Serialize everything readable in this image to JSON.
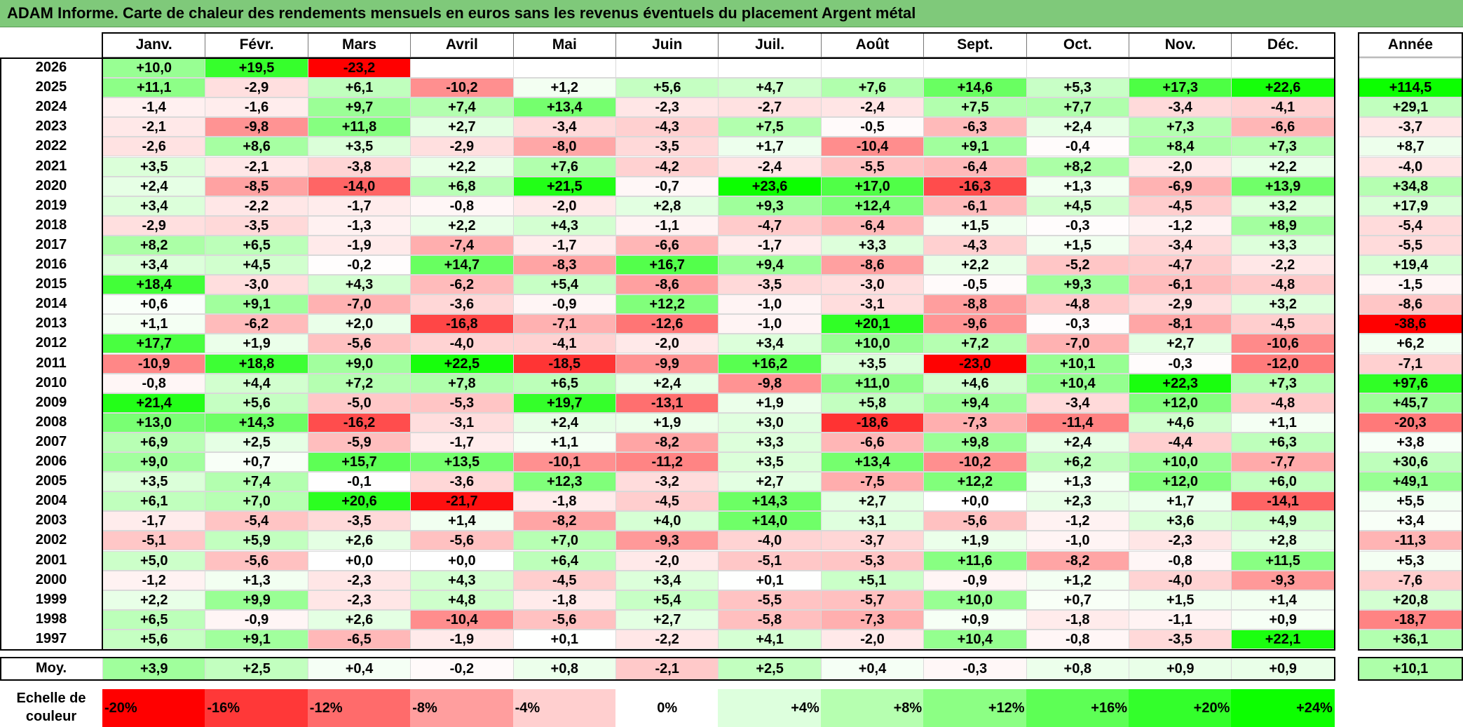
{
  "title": "ADAM Informe. Carte de chaleur des rendements mensuels en euros sans les revenus éventuels du placement Argent métal",
  "chart_data": {
    "type": "heatmap",
    "months": [
      "Janv.",
      "Févr.",
      "Mars",
      "Avril",
      "Mai",
      "Juin",
      "Juil.",
      "Août",
      "Sept.",
      "Oct.",
      "Nov.",
      "Déc."
    ],
    "year_header": "Année",
    "rows": [
      {
        "year": "2026",
        "values": [
          "+10,0",
          "+19,5",
          "-23,2",
          "",
          "",
          "",
          "",
          "",
          "",
          "",
          "",
          ""
        ],
        "annual": ""
      },
      {
        "year": "2025",
        "values": [
          "+11,1",
          "-2,9",
          "+6,1",
          "-10,2",
          "+1,2",
          "+5,6",
          "+4,7",
          "+7,6",
          "+14,6",
          "+5,3",
          "+17,3",
          "+22,6"
        ],
        "annual": "+114,5"
      },
      {
        "year": "2024",
        "values": [
          "-1,4",
          "-1,6",
          "+9,7",
          "+7,4",
          "+13,4",
          "-2,3",
          "-2,7",
          "-2,4",
          "+7,5",
          "+7,7",
          "-3,4",
          "-4,1"
        ],
        "annual": "+29,1"
      },
      {
        "year": "2023",
        "values": [
          "-2,1",
          "-9,8",
          "+11,8",
          "+2,7",
          "-3,4",
          "-4,3",
          "+7,5",
          "-0,5",
          "-6,3",
          "+2,4",
          "+7,3",
          "-6,6"
        ],
        "annual": "-3,7"
      },
      {
        "year": "2022",
        "values": [
          "-2,6",
          "+8,6",
          "+3,5",
          "-2,9",
          "-8,0",
          "-3,5",
          "+1,7",
          "-10,4",
          "+9,1",
          "-0,4",
          "+8,4",
          "+7,3"
        ],
        "annual": "+8,7"
      },
      {
        "year": "2021",
        "values": [
          "+3,5",
          "-2,1",
          "-3,8",
          "+2,2",
          "+7,6",
          "-4,2",
          "-2,4",
          "-5,5",
          "-6,4",
          "+8,2",
          "-2,0",
          "+2,2"
        ],
        "annual": "-4,0"
      },
      {
        "year": "2020",
        "values": [
          "+2,4",
          "-8,5",
          "-14,0",
          "+6,8",
          "+21,5",
          "-0,7",
          "+23,6",
          "+17,0",
          "-16,3",
          "+1,3",
          "-6,9",
          "+13,9"
        ],
        "annual": "+34,8"
      },
      {
        "year": "2019",
        "values": [
          "+3,4",
          "-2,2",
          "-1,7",
          "-0,8",
          "-2,0",
          "+2,8",
          "+9,3",
          "+12,4",
          "-6,1",
          "+4,5",
          "-4,5",
          "+3,2"
        ],
        "annual": "+17,9"
      },
      {
        "year": "2018",
        "values": [
          "-2,9",
          "-3,5",
          "-1,3",
          "+2,2",
          "+4,3",
          "-1,1",
          "-4,7",
          "-6,4",
          "+1,5",
          "-0,3",
          "-1,2",
          "+8,9"
        ],
        "annual": "-5,4"
      },
      {
        "year": "2017",
        "values": [
          "+8,2",
          "+6,5",
          "-1,9",
          "-7,4",
          "-1,7",
          "-6,6",
          "-1,7",
          "+3,3",
          "-4,3",
          "+1,5",
          "-3,4",
          "+3,3"
        ],
        "annual": "-5,5"
      },
      {
        "year": "2016",
        "values": [
          "+3,4",
          "+4,5",
          "-0,2",
          "+14,7",
          "-8,3",
          "+16,7",
          "+9,4",
          "-8,6",
          "+2,2",
          "-5,2",
          "-4,7",
          "-2,2"
        ],
        "annual": "+19,4"
      },
      {
        "year": "2015",
        "values": [
          "+18,4",
          "-3,0",
          "+4,3",
          "-6,2",
          "+5,4",
          "-8,6",
          "-3,5",
          "-3,0",
          "-0,5",
          "+9,3",
          "-6,1",
          "-4,8"
        ],
        "annual": "-1,5"
      },
      {
        "year": "2014",
        "values": [
          "+0,6",
          "+9,1",
          "-7,0",
          "-3,6",
          "-0,9",
          "+12,2",
          "-1,0",
          "-3,1",
          "-8,8",
          "-4,8",
          "-2,9",
          "+3,2"
        ],
        "annual": "-8,6"
      },
      {
        "year": "2013",
        "values": [
          "+1,1",
          "-6,2",
          "+2,0",
          "-16,8",
          "-7,1",
          "-12,6",
          "-1,0",
          "+20,1",
          "-9,6",
          "-0,3",
          "-8,1",
          "-4,5"
        ],
        "annual": "-38,6"
      },
      {
        "year": "2012",
        "values": [
          "+17,7",
          "+1,9",
          "-5,6",
          "-4,0",
          "-4,1",
          "-2,0",
          "+3,4",
          "+10,0",
          "+7,2",
          "-7,0",
          "+2,7",
          "-10,6"
        ],
        "annual": "+6,2"
      },
      {
        "year": "2011",
        "values": [
          "-10,9",
          "+18,8",
          "+9,0",
          "+22,5",
          "-18,5",
          "-9,9",
          "+16,2",
          "+3,5",
          "-23,0",
          "+10,1",
          "-0,3",
          "-12,0"
        ],
        "annual": "-7,1"
      },
      {
        "year": "2010",
        "values": [
          "-0,8",
          "+4,4",
          "+7,2",
          "+7,8",
          "+6,5",
          "+2,4",
          "-9,8",
          "+11,0",
          "+4,6",
          "+10,4",
          "+22,3",
          "+7,3"
        ],
        "annual": "+97,6"
      },
      {
        "year": "2009",
        "values": [
          "+21,4",
          "+5,6",
          "-5,0",
          "-5,3",
          "+19,7",
          "-13,1",
          "+1,9",
          "+5,8",
          "+9,4",
          "-3,4",
          "+12,0",
          "-4,8"
        ],
        "annual": "+45,7"
      },
      {
        "year": "2008",
        "values": [
          "+13,0",
          "+14,3",
          "-16,2",
          "-3,1",
          "+2,4",
          "+1,9",
          "+3,0",
          "-18,6",
          "-7,3",
          "-11,4",
          "+4,6",
          "+1,1"
        ],
        "annual": "-20,3"
      },
      {
        "year": "2007",
        "values": [
          "+6,9",
          "+2,5",
          "-5,9",
          "-1,7",
          "+1,1",
          "-8,2",
          "+3,3",
          "-6,6",
          "+9,8",
          "+2,4",
          "-4,4",
          "+6,3"
        ],
        "annual": "+3,8"
      },
      {
        "year": "2006",
        "values": [
          "+9,0",
          "+0,7",
          "+15,7",
          "+13,5",
          "-10,1",
          "-11,2",
          "+3,5",
          "+13,4",
          "-10,2",
          "+6,2",
          "+10,0",
          "-7,7"
        ],
        "annual": "+30,6"
      },
      {
        "year": "2005",
        "values": [
          "+3,5",
          "+7,4",
          "-0,1",
          "-3,6",
          "+12,3",
          "-3,2",
          "+2,7",
          "-7,5",
          "+12,2",
          "+1,3",
          "+12,0",
          "+6,0"
        ],
        "annual": "+49,1"
      },
      {
        "year": "2004",
        "values": [
          "+6,1",
          "+7,0",
          "+20,6",
          "-21,7",
          "-1,8",
          "-4,5",
          "+14,3",
          "+2,7",
          "+0,0",
          "+2,3",
          "+1,7",
          "-14,1"
        ],
        "annual": "+5,5"
      },
      {
        "year": "2003",
        "values": [
          "-1,7",
          "-5,4",
          "-3,5",
          "+1,4",
          "-8,2",
          "+4,0",
          "+14,0",
          "+3,1",
          "-5,6",
          "-1,2",
          "+3,6",
          "+4,9"
        ],
        "annual": "+3,4"
      },
      {
        "year": "2002",
        "values": [
          "-5,1",
          "+5,9",
          "+2,6",
          "-5,6",
          "+7,0",
          "-9,3",
          "-4,0",
          "-3,7",
          "+1,9",
          "-1,0",
          "-2,3",
          "+2,8"
        ],
        "annual": "-11,3"
      },
      {
        "year": "2001",
        "values": [
          "+5,0",
          "-5,6",
          "+0,0",
          "+0,0",
          "+6,4",
          "-2,0",
          "-5,1",
          "-5,3",
          "+11,6",
          "-8,2",
          "-0,8",
          "+11,5"
        ],
        "annual": "+5,3"
      },
      {
        "year": "2000",
        "values": [
          "-1,2",
          "+1,3",
          "-2,3",
          "+4,3",
          "-4,5",
          "+3,4",
          "+0,1",
          "+5,1",
          "-0,9",
          "+1,2",
          "-4,0",
          "-9,3"
        ],
        "annual": "-7,6"
      },
      {
        "year": "1999",
        "values": [
          "+2,2",
          "+9,9",
          "-2,3",
          "+4,8",
          "-1,8",
          "+5,4",
          "-5,5",
          "-5,7",
          "+10,0",
          "+0,7",
          "+1,5",
          "+1,4"
        ],
        "annual": "+20,8"
      },
      {
        "year": "1998",
        "values": [
          "+6,5",
          "-0,9",
          "+2,6",
          "-10,4",
          "-5,6",
          "+2,7",
          "-5,8",
          "-7,3",
          "+0,9",
          "-1,8",
          "-1,1",
          "+0,9"
        ],
        "annual": "-18,7"
      },
      {
        "year": "1997",
        "values": [
          "+5,6",
          "+9,1",
          "-6,5",
          "-1,9",
          "+0,1",
          "-2,2",
          "+4,1",
          "-2,0",
          "+10,4",
          "-0,8",
          "-3,5",
          "+22,1"
        ],
        "annual": "+36,1"
      }
    ],
    "average": {
      "label": "Moy.",
      "values": [
        "+3,9",
        "+2,5",
        "+0,4",
        "-0,2",
        "+0,8",
        "-2,1",
        "+2,5",
        "+0,4",
        "-0,3",
        "+0,8",
        "+0,9",
        "+0,9"
      ],
      "annual": "+10,1"
    },
    "scale": {
      "label": "Echelle de couleur",
      "steps": [
        "-20%",
        "-16%",
        "-12%",
        "-8%",
        "-4%",
        "0%",
        "+4%",
        "+8%",
        "+12%",
        "+16%",
        "+20%",
        "+24%"
      ],
      "colors": [
        "#ff0000",
        "#ff3838",
        "#ff6b6b",
        "#ff9e9e",
        "#ffcfcf",
        "#ffffff",
        "#ddffdd",
        "#b6ffb0",
        "#8cff84",
        "#5dff55",
        "#33ff2b",
        "#0cff00"
      ]
    },
    "color_negative": "#ff0000",
    "color_positive": "#0cff00",
    "color_neutral": "#ffffff"
  }
}
